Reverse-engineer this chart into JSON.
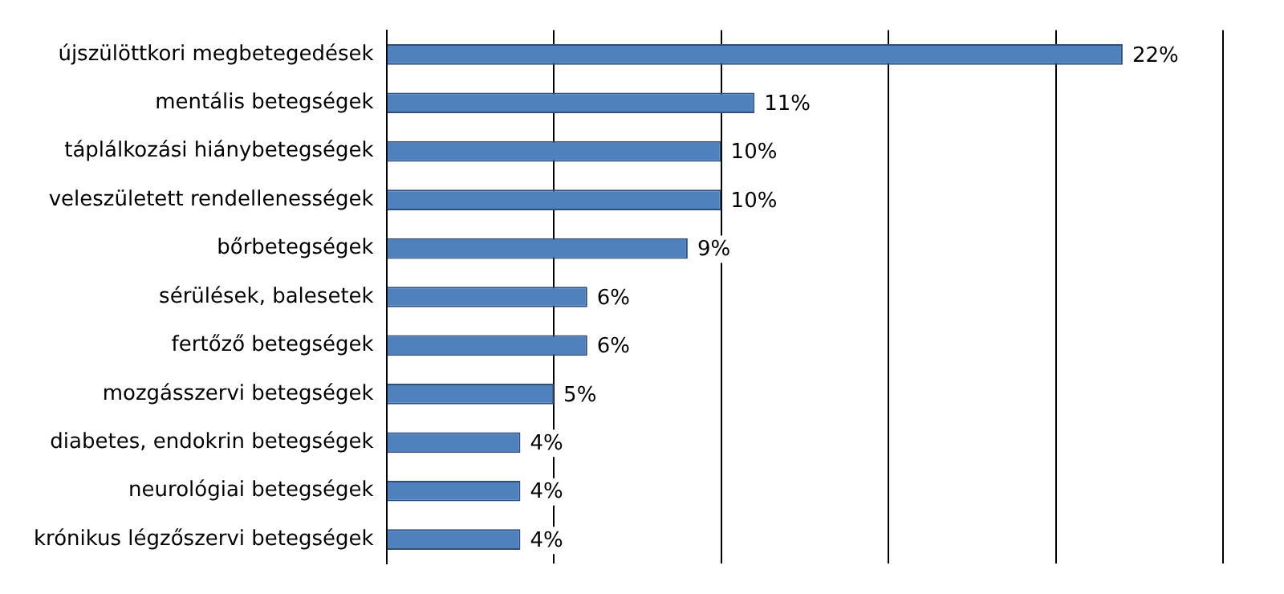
{
  "chart_data": {
    "type": "bar",
    "orientation": "horizontal",
    "categories": [
      "újszülöttkori megbetegedések",
      "mentális betegségek",
      "táplálkozási hiánybetegségek",
      "veleszületett rendellenességek",
      "bőrbetegségek",
      "sérülések, balesetek",
      "fertőző betegségek",
      "mozgásszervi betegségek",
      "diabetes, endokrin betegségek",
      "neurológiai betegségek",
      "krónikus légzőszervi betegségek"
    ],
    "values": [
      22,
      11,
      10,
      10,
      9,
      6,
      6,
      5,
      4,
      4,
      4
    ],
    "value_labels": [
      "22%",
      "11%",
      "10%",
      "10%",
      "9%",
      "6%",
      "6%",
      "5%",
      "4%",
      "4%",
      "4%"
    ],
    "color": "#4f81bd",
    "xlim": [
      0,
      25
    ],
    "xticks": [
      {
        "value": 0,
        "label": null
      },
      {
        "value": 5,
        "label": null
      },
      {
        "value": 10,
        "label": null
      },
      {
        "value": 15,
        "label": null
      },
      {
        "value": 20,
        "label": null
      },
      {
        "value": 25,
        "label": null
      }
    ],
    "grid": "x",
    "legend": false,
    "tick_labels": "y"
  }
}
